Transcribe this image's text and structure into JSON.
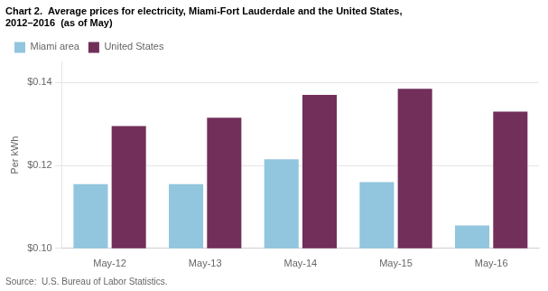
{
  "chart_data": {
    "type": "bar",
    "title": "Chart 2.  Average prices for electricity, Miami-Fort Lauderdale and the United States,",
    "subtitle": "2012–2016  (as of May)",
    "ylabel": "Per kWh",
    "source": "Source:  U.S. Bureau of Labor Statistics.",
    "categories": [
      "May-12",
      "May-13",
      "May-14",
      "May-15",
      "May-16"
    ],
    "series": [
      {
        "name": "Miami area",
        "color": "#92c5de",
        "values": [
          0.1155,
          0.1155,
          0.1215,
          0.116,
          0.1055
        ]
      },
      {
        "name": "United States",
        "color": "#722F5A",
        "values": [
          0.1295,
          0.1315,
          0.137,
          0.1385,
          0.133
        ]
      }
    ],
    "ylim": [
      0.1,
      0.145
    ],
    "yticks": [
      {
        "value": 0.1,
        "label": "$0.10"
      },
      {
        "value": 0.12,
        "label": "$0.12"
      },
      {
        "value": 0.14,
        "label": "$0.14"
      }
    ],
    "grid": true,
    "legend": "upper left"
  }
}
